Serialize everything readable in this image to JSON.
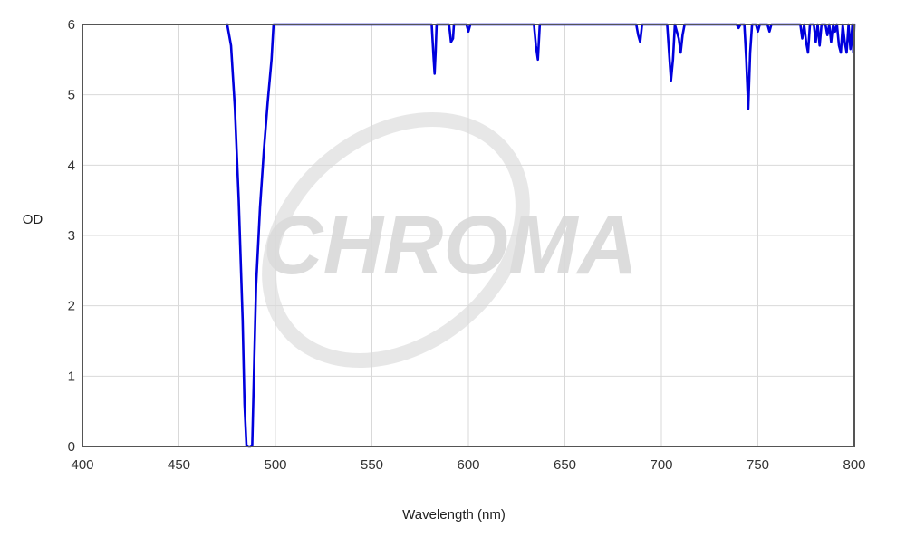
{
  "watermark": {
    "text": "CHROMA"
  },
  "chart_data": {
    "type": "line",
    "title": "",
    "xlabel": "Wavelength (nm)",
    "ylabel": "OD",
    "xlim": [
      400,
      800
    ],
    "ylim": [
      0,
      6
    ],
    "x_ticks": [
      400,
      450,
      500,
      550,
      600,
      650,
      700,
      750,
      800
    ],
    "y_ticks": [
      0,
      1,
      2,
      3,
      4,
      5,
      6
    ],
    "grid": true,
    "legend": "none",
    "line_color": "#0000dd",
    "series": [
      {
        "name": "",
        "points": [
          [
            475,
            6.0
          ],
          [
            477,
            5.7
          ],
          [
            479,
            4.8
          ],
          [
            481,
            3.5
          ],
          [
            483,
            1.8
          ],
          [
            484,
            0.6
          ],
          [
            485,
            0.02
          ],
          [
            486,
            0.0
          ],
          [
            487,
            0.0
          ],
          [
            488,
            0.02
          ],
          [
            489,
            1.2
          ],
          [
            490,
            2.3
          ],
          [
            492,
            3.4
          ],
          [
            494,
            4.2
          ],
          [
            496,
            4.9
          ],
          [
            498,
            5.5
          ],
          [
            499,
            6.0
          ],
          [
            581,
            6.0
          ],
          [
            582,
            5.5
          ],
          [
            582.5,
            5.3
          ],
          [
            583,
            5.6
          ],
          [
            583.5,
            6.0
          ],
          [
            590,
            6.0
          ],
          [
            591,
            5.75
          ],
          [
            592,
            5.8
          ],
          [
            592.5,
            6.0
          ],
          [
            599,
            6.0
          ],
          [
            600,
            5.9
          ],
          [
            601,
            6.0
          ],
          [
            634,
            6.0
          ],
          [
            635,
            5.7
          ],
          [
            636,
            5.5
          ],
          [
            637,
            6.0
          ],
          [
            687,
            6.0
          ],
          [
            688,
            5.85
          ],
          [
            689,
            5.75
          ],
          [
            690,
            6.0
          ],
          [
            703,
            6.0
          ],
          [
            704,
            5.6
          ],
          [
            705,
            5.2
          ],
          [
            706,
            5.5
          ],
          [
            707,
            6.0
          ],
          [
            709,
            5.8
          ],
          [
            710,
            5.6
          ],
          [
            711,
            5.85
          ],
          [
            712,
            6.0
          ],
          [
            739,
            6.0
          ],
          [
            740,
            5.95
          ],
          [
            741,
            6.0
          ],
          [
            743,
            6.0
          ],
          [
            744,
            5.5
          ],
          [
            745,
            4.8
          ],
          [
            746,
            5.6
          ],
          [
            747,
            6.0
          ],
          [
            749,
            6.0
          ],
          [
            750,
            5.9
          ],
          [
            751,
            6.0
          ],
          [
            755,
            6.0
          ],
          [
            756,
            5.9
          ],
          [
            757,
            6.0
          ],
          [
            772,
            6.0
          ],
          [
            773,
            5.8
          ],
          [
            774,
            6.0
          ],
          [
            775,
            5.75
          ],
          [
            776,
            5.6
          ],
          [
            777,
            6.0
          ],
          [
            779,
            6.0
          ],
          [
            780,
            5.75
          ],
          [
            781,
            6.0
          ],
          [
            782,
            5.7
          ],
          [
            783,
            6.0
          ],
          [
            785,
            6.0
          ],
          [
            786,
            5.85
          ],
          [
            787,
            6.0
          ],
          [
            788,
            5.75
          ],
          [
            789,
            6.0
          ],
          [
            790,
            5.9
          ],
          [
            791,
            6.0
          ],
          [
            792,
            5.7
          ],
          [
            793,
            5.6
          ],
          [
            794,
            6.0
          ],
          [
            795,
            5.75
          ],
          [
            796,
            5.6
          ],
          [
            797,
            6.0
          ],
          [
            798,
            5.65
          ],
          [
            799,
            6.0
          ],
          [
            799.5,
            5.6
          ],
          [
            800,
            6.0
          ]
        ]
      }
    ]
  }
}
